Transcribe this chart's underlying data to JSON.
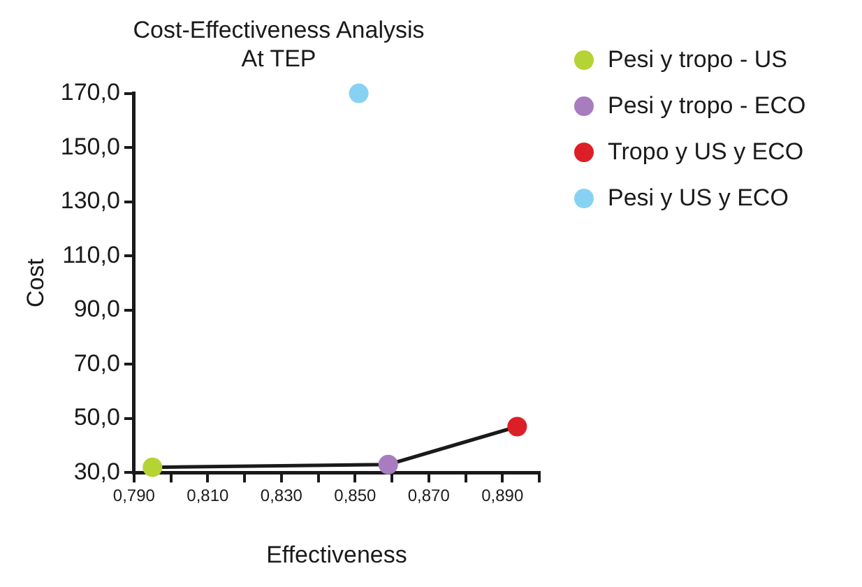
{
  "chart_data": {
    "type": "scatter",
    "title": "Cost-Effectiveness Analysis\nAt TEP",
    "xlabel": "Effectiveness",
    "ylabel": "Cost",
    "xlim": [
      0.79,
      0.9
    ],
    "xticks": [
      {
        "value": 0.79,
        "label": "0,790"
      },
      {
        "value": 0.8,
        "label": null
      },
      {
        "value": 0.81,
        "label": "0,810"
      },
      {
        "value": 0.82,
        "label": null
      },
      {
        "value": 0.83,
        "label": "0,830"
      },
      {
        "value": 0.84,
        "label": null
      },
      {
        "value": 0.85,
        "label": "0,850"
      },
      {
        "value": 0.86,
        "label": null
      },
      {
        "value": 0.87,
        "label": "0,870"
      },
      {
        "value": 0.88,
        "label": null
      },
      {
        "value": 0.89,
        "label": "0,890"
      },
      {
        "value": 0.9,
        "label": null
      }
    ],
    "ylim": [
      30,
      170
    ],
    "yticks": [
      {
        "value": 30,
        "label": "30,0"
      },
      {
        "value": 50,
        "label": "50,0"
      },
      {
        "value": 70,
        "label": "70,0"
      },
      {
        "value": 90,
        "label": "90,0"
      },
      {
        "value": 110,
        "label": "110,0"
      },
      {
        "value": 130,
        "label": "130,0"
      },
      {
        "value": 150,
        "label": "150,0"
      },
      {
        "value": 170,
        "label": "170,0"
      }
    ],
    "grid": false,
    "legend": "right",
    "marker": "circle",
    "series": [
      {
        "type": "line",
        "color": "#1a1a1a",
        "x": [
          0.795,
          0.859,
          0.894
        ],
        "values": [
          32,
          33,
          47
        ],
        "marker": "none"
      },
      {
        "name": "Pesi y tropo - US",
        "color": "#b5d334",
        "x": [
          0.795
        ],
        "values": [
          32
        ]
      },
      {
        "name": "Pesi y tropo - ECO",
        "color": "#a87dbf",
        "x": [
          0.859
        ],
        "values": [
          33
        ]
      },
      {
        "name": "Tropo y US y ECO",
        "color": "#dc1f26",
        "x": [
          0.894
        ],
        "values": [
          47
        ]
      },
      {
        "name": "Pesi y US y ECO",
        "color": "#87d2f2",
        "x": [
          0.851
        ],
        "values": [
          170
        ]
      }
    ]
  }
}
